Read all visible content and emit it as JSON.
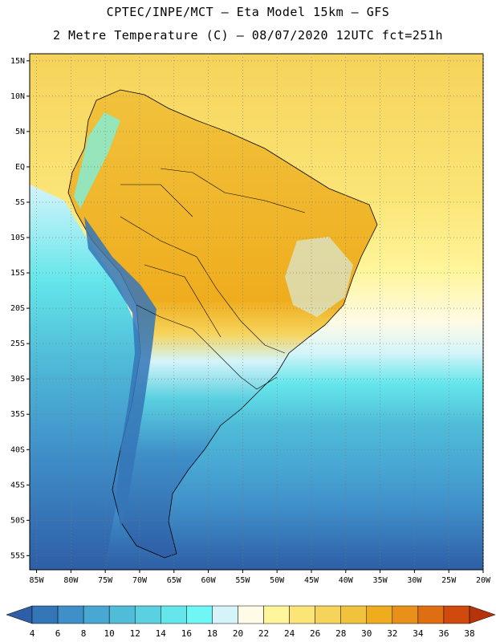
{
  "header": {
    "line1": "CPTEC/INPE/MCT —  Eta Model 15km — GFS",
    "line2": "2 Metre Temperature (C) — 08/07/2020 12UTC fct=251h"
  },
  "map": {
    "lat_labels": [
      "15N",
      "10N",
      "5N",
      "EQ",
      "5S",
      "10S",
      "15S",
      "20S",
      "25S",
      "30S",
      "35S",
      "40S",
      "45S",
      "50S",
      "55S"
    ],
    "lon_labels": [
      "85W",
      "80W",
      "75W",
      "70W",
      "65W",
      "60W",
      "55W",
      "50W",
      "45W",
      "40W",
      "35W",
      "30W",
      "25W",
      "20W"
    ],
    "lat_range": [
      -57,
      16
    ],
    "lon_range": [
      -86,
      -20
    ],
    "grid": "dotted"
  },
  "colorbar": {
    "values": [
      "4",
      "6",
      "8",
      "10",
      "12",
      "14",
      "16",
      "18",
      "20",
      "22",
      "24",
      "26",
      "28",
      "30",
      "32",
      "34",
      "36",
      "38"
    ],
    "colors": [
      "#2e5ea6",
      "#3576b8",
      "#3f8fc9",
      "#48a7d3",
      "#50bcd8",
      "#5ad0e0",
      "#64e6ea",
      "#6ff7f5",
      "#d4f4fa",
      "#fffbe6",
      "#fff59a",
      "#fbe577",
      "#f6d35a",
      "#f1c23c",
      "#efad1e",
      "#e9901a",
      "#df6e12",
      "#cf4a0c",
      "#b5340a"
    ]
  }
}
